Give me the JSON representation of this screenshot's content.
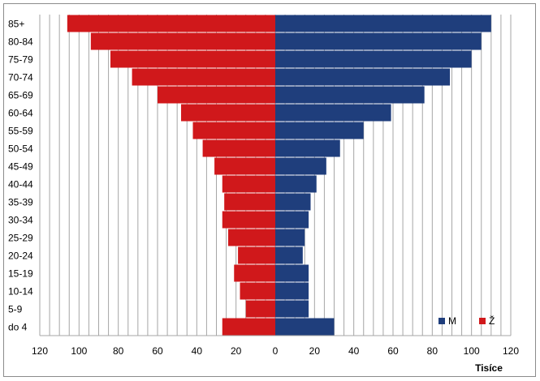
{
  "chart_data": {
    "type": "bar",
    "orientation": "horizontal",
    "subtype": "population-pyramid",
    "categories": [
      "85+",
      "80-84",
      "75-79",
      "70-74",
      "65-69",
      "60-64",
      "55-59",
      "50-54",
      "45-49",
      "40-44",
      "35-39",
      "30-34",
      "25-29",
      "20-24",
      "15-19",
      "10-14",
      "5-9",
      "do 4"
    ],
    "series": [
      {
        "name": "M",
        "color": "#1f3e7c",
        "side": "right",
        "values": [
          110,
          105,
          100,
          89,
          76,
          59,
          45,
          33,
          26,
          21,
          18,
          17,
          15,
          14,
          17,
          17,
          17,
          30
        ]
      },
      {
        "name": "Ž",
        "color": "#d0181b",
        "side": "left",
        "values": [
          106,
          94,
          84,
          73,
          60,
          48,
          42,
          37,
          31,
          27,
          26,
          27,
          24,
          19,
          21,
          18,
          15,
          27
        ]
      }
    ],
    "xlabel": "Tisíce",
    "xticks": [
      "120",
      "100",
      "80",
      "60",
      "40",
      "20",
      "0",
      "20",
      "40",
      "60",
      "80",
      "100",
      "120"
    ],
    "xlim": [
      -120,
      120
    ],
    "grid": "vertical, every 5",
    "legend_position": "bottom-right"
  }
}
